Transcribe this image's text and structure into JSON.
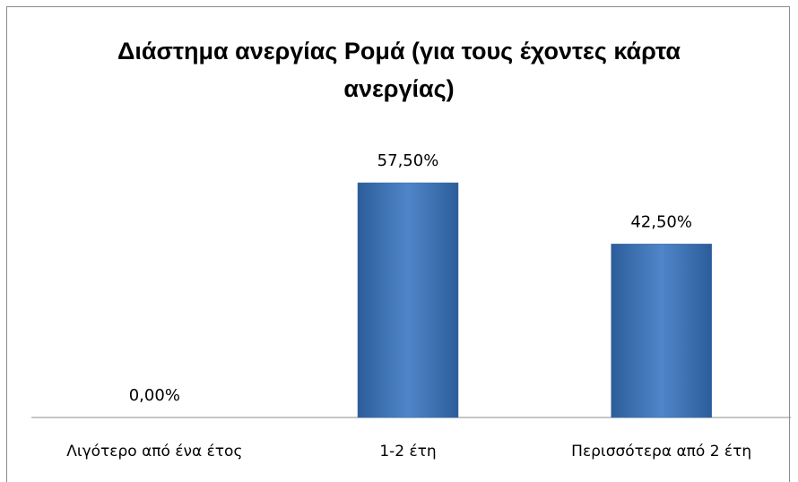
{
  "chart_data": {
    "type": "bar",
    "title": "Διάστημα ανεργίας Ρομά (για τους έχοντες κάρτα ανεργίας)",
    "categories": [
      "Λιγότερο από ένα έτος",
      "1-2 έτη",
      "Περισσότερα από 2 έτη"
    ],
    "values": [
      0,
      57.5,
      42.5
    ],
    "value_labels": [
      "0,00%",
      "57,50%",
      "42,50%"
    ],
    "color": "#4a7ebb"
  }
}
